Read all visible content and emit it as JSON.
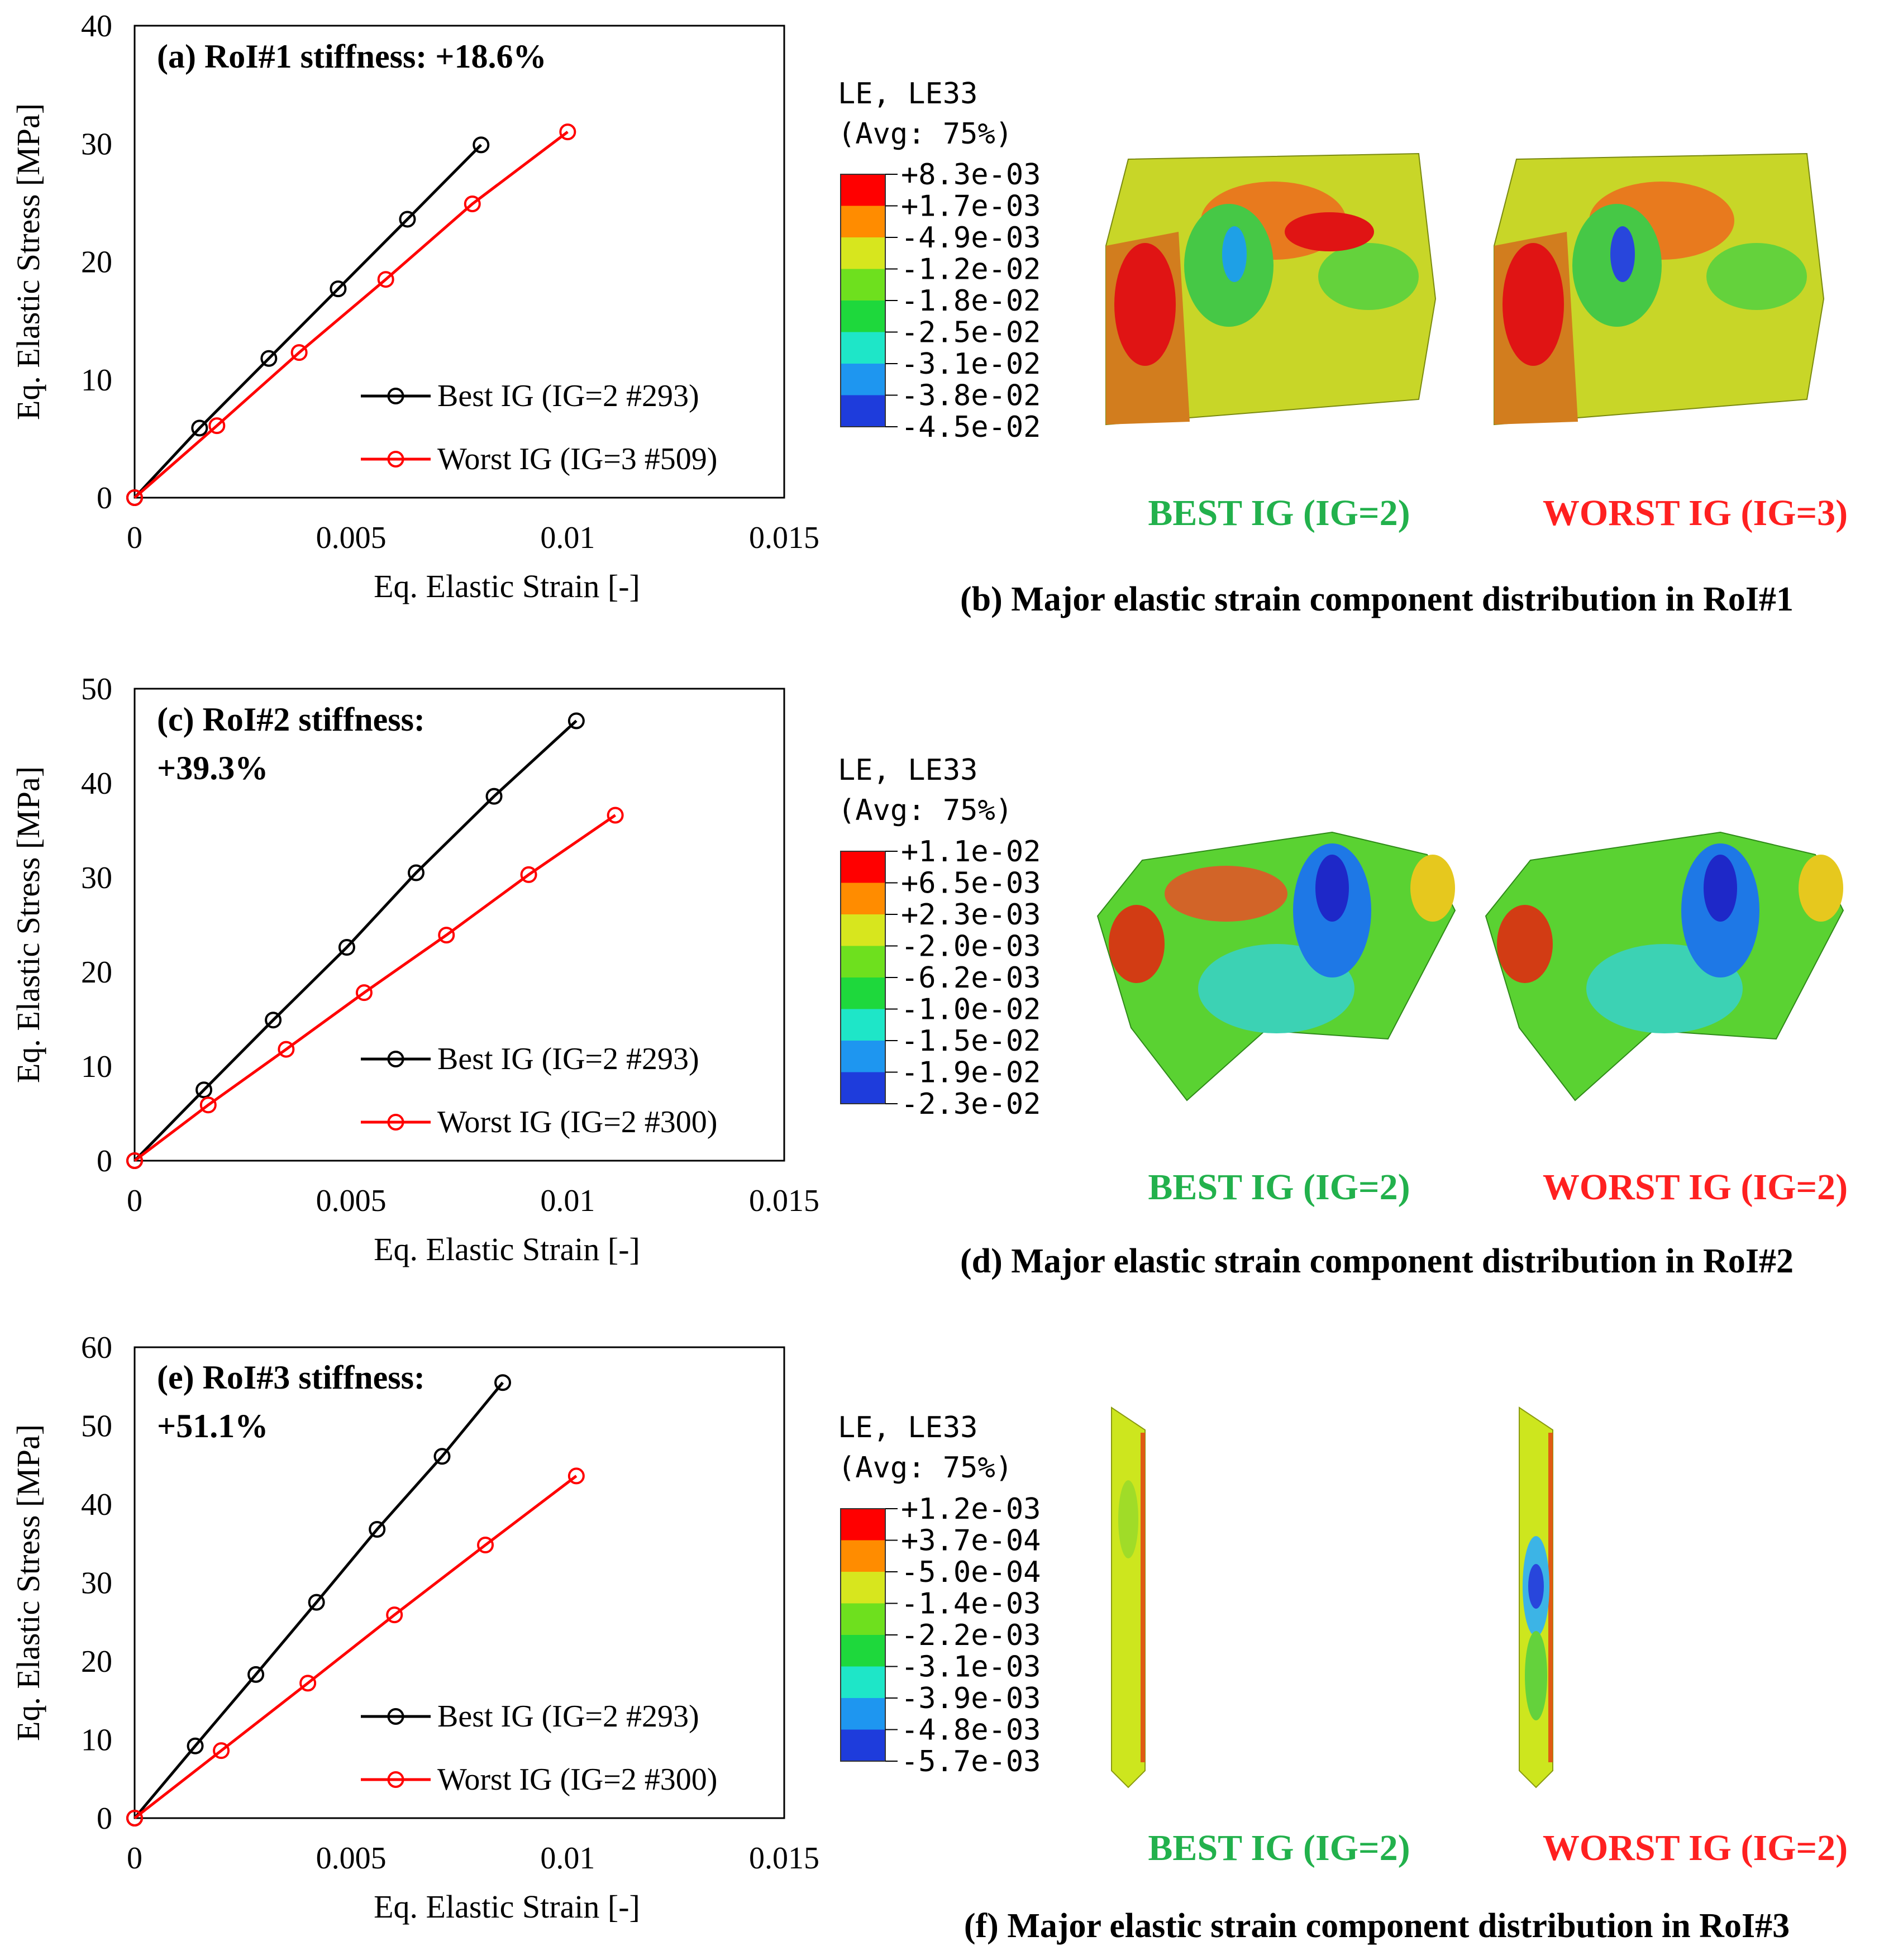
{
  "chart_data": [
    {
      "type": "line",
      "panel": "(a)",
      "title": "(a) RoI#1 stiffness: +18.6%",
      "title_lines": [
        "(a) RoI#1 stiffness: +18.6%"
      ],
      "xlabel": "Eq. Elastic Strain [-]",
      "ylabel": "Eq. Elastic Stress [MPa]",
      "xlim": [
        0,
        0.015
      ],
      "ylim": [
        0,
        40
      ],
      "xticks": [
        0,
        0.005,
        0.01,
        0.015
      ],
      "xtick_labels": [
        "0",
        "0.005",
        "0.01",
        "0.015"
      ],
      "yticks": [
        0,
        10,
        20,
        30,
        40
      ],
      "ytick_labels": [
        "0",
        "10",
        "20",
        "30",
        "40"
      ],
      "legend_position": "bottom-right",
      "series": [
        {
          "name": "Best IG (IG=2 #293)",
          "color": "#000000",
          "x": [
            0,
            0.0015,
            0.0031,
            0.0047,
            0.0063,
            0.008
          ],
          "y": [
            0,
            5.9,
            11.8,
            17.7,
            23.6,
            29.9
          ]
        },
        {
          "name": "Worst IG (IG=3 #509)",
          "color": "#ff0000",
          "x": [
            0,
            0.0019,
            0.0038,
            0.0058,
            0.0078,
            0.01
          ],
          "y": [
            0,
            6.1,
            12.3,
            18.5,
            24.9,
            31.0
          ]
        }
      ]
    },
    {
      "type": "line",
      "panel": "(c)",
      "title": "(c) RoI#2 stiffness: +39.3%",
      "title_lines": [
        "(c) RoI#2 stiffness:",
        "+39.3%"
      ],
      "xlabel": "Eq. Elastic Strain [-]",
      "ylabel": "Eq. Elastic Stress [MPa]",
      "xlim": [
        0,
        0.015
      ],
      "ylim": [
        0,
        50
      ],
      "xticks": [
        0,
        0.005,
        0.01,
        0.015
      ],
      "xtick_labels": [
        "0",
        "0.005",
        "0.01",
        "0.015"
      ],
      "yticks": [
        0,
        10,
        20,
        30,
        40,
        50
      ],
      "ytick_labels": [
        "0",
        "10",
        "20",
        "30",
        "40",
        "50"
      ],
      "legend_position": "bottom-right",
      "series": [
        {
          "name": "Best IG (IG=2 #293)",
          "color": "#000000",
          "x": [
            0,
            0.0016,
            0.0032,
            0.0049,
            0.0065,
            0.0083,
            0.0102
          ],
          "y": [
            0,
            7.5,
            14.9,
            22.6,
            30.5,
            38.6,
            46.6
          ]
        },
        {
          "name": "Worst IG (IG=2 #300)",
          "color": "#ff0000",
          "x": [
            0,
            0.0017,
            0.0035,
            0.0053,
            0.0072,
            0.0091,
            0.0111
          ],
          "y": [
            0,
            5.9,
            11.8,
            17.8,
            23.9,
            30.3,
            36.6
          ]
        }
      ]
    },
    {
      "type": "line",
      "panel": "(e)",
      "title": "(e) RoI#3 stiffness: +51.1%",
      "title_lines": [
        "(e) RoI#3 stiffness:",
        "+51.1%"
      ],
      "xlabel": "Eq. Elastic Strain [-]",
      "ylabel": "Eq. Elastic Stress [MPa]",
      "xlim": [
        0,
        0.015
      ],
      "ylim": [
        0,
        60
      ],
      "xticks": [
        0,
        0.005,
        0.01,
        0.015
      ],
      "xtick_labels": [
        "0",
        "0.005",
        "0.01",
        "0.015"
      ],
      "yticks": [
        0,
        10,
        20,
        30,
        40,
        50,
        60
      ],
      "ytick_labels": [
        "0",
        "10",
        "20",
        "30",
        "40",
        "50",
        "60"
      ],
      "legend_position": "bottom-right",
      "series": [
        {
          "name": "Best IG (IG=2 #293)",
          "color": "#000000",
          "x": [
            0,
            0.0014,
            0.0028,
            0.0042,
            0.0056,
            0.0071,
            0.0085
          ],
          "y": [
            0,
            9.2,
            18.3,
            27.5,
            36.8,
            46.1,
            55.5
          ]
        },
        {
          "name": "Worst IG (IG=2 #300)",
          "color": "#ff0000",
          "x": [
            0,
            0.002,
            0.004,
            0.006,
            0.0081,
            0.0102
          ],
          "y": [
            0,
            8.6,
            17.2,
            25.9,
            34.8,
            43.6
          ]
        }
      ]
    }
  ],
  "contours": [
    {
      "panel": "(b)",
      "legend_title": [
        "LE, LE33",
        "(Avg: 75%)"
      ],
      "levels": [
        "+8.3e-03",
        "+1.7e-03",
        "-4.9e-03",
        "-1.2e-02",
        "-1.8e-02",
        "-2.5e-02",
        "-3.1e-02",
        "-3.8e-02",
        "-4.5e-02"
      ],
      "best_label": "BEST IG (IG=2)",
      "worst_label": "WORST IG (IG=3)",
      "caption": "(b) Major elastic strain component distribution in RoI#1"
    },
    {
      "panel": "(d)",
      "legend_title": [
        "LE, LE33",
        "(Avg: 75%)"
      ],
      "levels": [
        "+1.1e-02",
        "+6.5e-03",
        "+2.3e-03",
        "-2.0e-03",
        "-6.2e-03",
        "-1.0e-02",
        "-1.5e-02",
        "-1.9e-02",
        "-2.3e-02"
      ],
      "best_label": "BEST IG (IG=2)",
      "worst_label": "WORST IG (IG=2)",
      "caption": "(d) Major elastic strain component distribution in RoI#2"
    },
    {
      "panel": "(f)",
      "legend_title": [
        "LE, LE33",
        "(Avg: 75%)"
      ],
      "levels": [
        "+1.2e-03",
        "+3.7e-04",
        "-5.0e-04",
        "-1.4e-03",
        "-2.2e-03",
        "-3.1e-03",
        "-3.9e-03",
        "-4.8e-03",
        "-5.7e-03"
      ],
      "best_label": "BEST IG (IG=2)",
      "worst_label": "WORST IG (IG=2)",
      "caption": "(f) Major elastic strain component distribution in RoI#3"
    }
  ],
  "colors": {
    "best_label": "#22b14c",
    "worst_label": "#ff2020",
    "colorbar": [
      "#ff0000",
      "#ff8c00",
      "#d7e61e",
      "#6ee01e",
      "#1ed83c",
      "#1ee6c8",
      "#1e96f0",
      "#1e3cdc"
    ]
  }
}
